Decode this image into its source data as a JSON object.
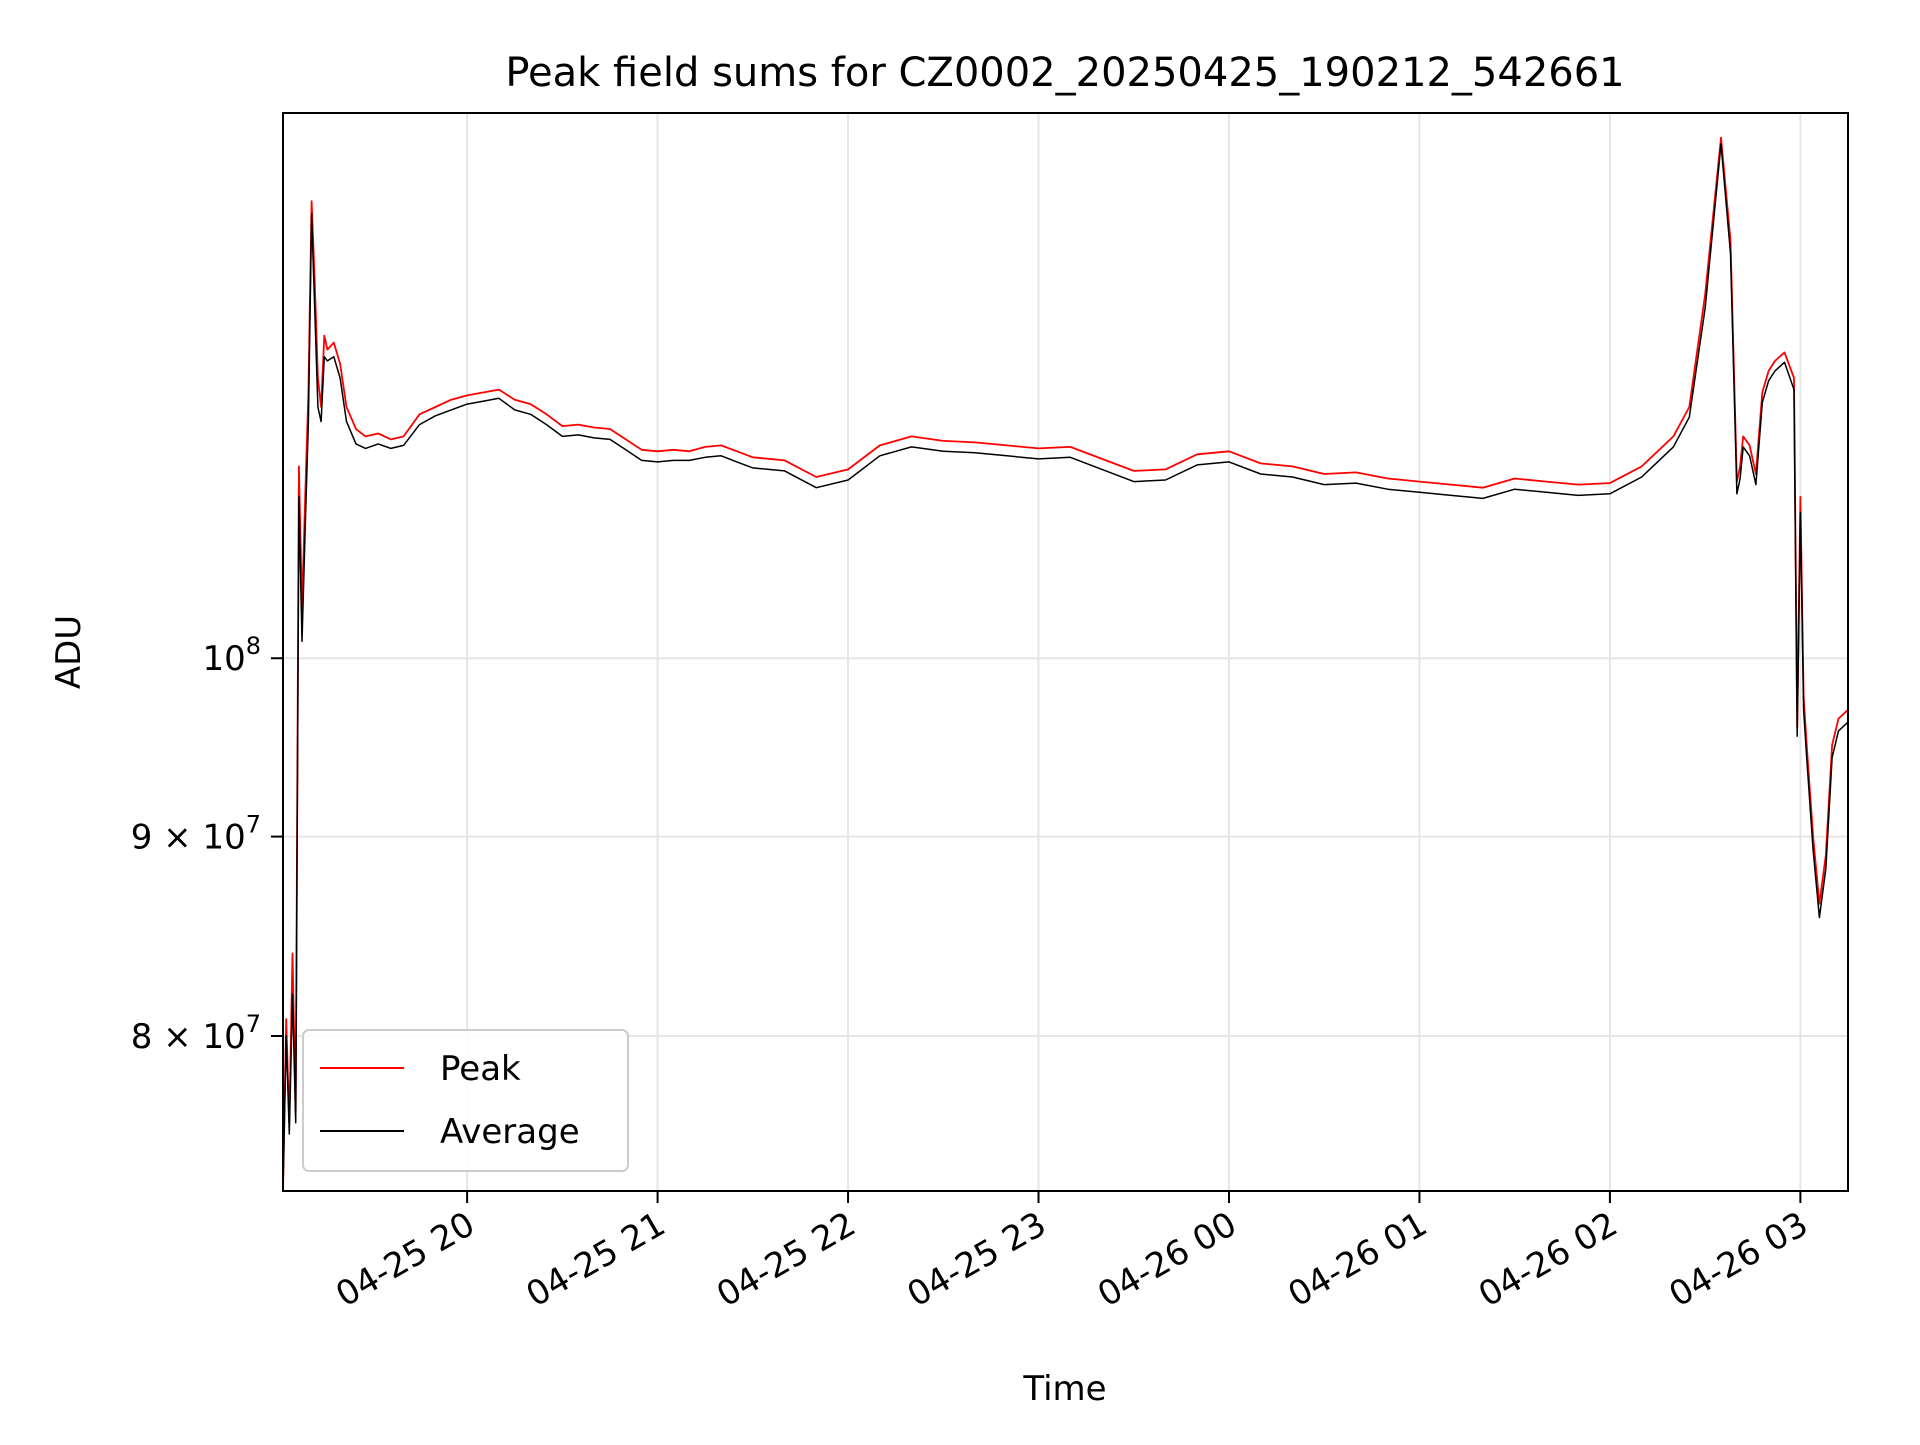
{
  "chart_data": {
    "type": "line",
    "title": "Peak field sums for CZ0002_20250425_190212_542661",
    "xlabel": "Time",
    "ylabel": "ADU",
    "y_scale": "log",
    "grid": true,
    "legend_position": "lower-left",
    "xlim": [
      "2025-04-25 19:02",
      "2025-04-26 03:15"
    ],
    "ylim": [
      73000000,
      138000000
    ],
    "x_ticks": [
      {
        "t": "2025-04-25 20:00",
        "label": "04-25 20"
      },
      {
        "t": "2025-04-25 21:00",
        "label": "04-25 21"
      },
      {
        "t": "2025-04-25 22:00",
        "label": "04-25 22"
      },
      {
        "t": "2025-04-25 23:00",
        "label": "04-25 23"
      },
      {
        "t": "2025-04-26 00:00",
        "label": "04-26 00"
      },
      {
        "t": "2025-04-26 01:00",
        "label": "04-26 01"
      },
      {
        "t": "2025-04-26 02:00",
        "label": "04-26 02"
      },
      {
        "t": "2025-04-26 03:00",
        "label": "04-26 03"
      }
    ],
    "y_ticks": [
      {
        "value": 80000000,
        "mantissa": "8",
        "exponent": "7"
      },
      {
        "value": 90000000,
        "mantissa": "9",
        "exponent": "7"
      },
      {
        "value": 100000000,
        "mantissa": "",
        "exponent": "8"
      }
    ],
    "series": [
      {
        "name": "Peak",
        "color": "#ff0000",
        "x": [
          "2025-04-25 19:02",
          "2025-04-25 19:03",
          "2025-04-25 19:04",
          "2025-04-25 19:05",
          "2025-04-25 19:06",
          "2025-04-25 19:07",
          "2025-04-25 19:08",
          "2025-04-25 19:09",
          "2025-04-25 19:10",
          "2025-04-25 19:11",
          "2025-04-25 19:12",
          "2025-04-25 19:13",
          "2025-04-25 19:14",
          "2025-04-25 19:15",
          "2025-04-25 19:16",
          "2025-04-25 19:18",
          "2025-04-25 19:20",
          "2025-04-25 19:22",
          "2025-04-25 19:25",
          "2025-04-25 19:28",
          "2025-04-25 19:32",
          "2025-04-25 19:36",
          "2025-04-25 19:40",
          "2025-04-25 19:45",
          "2025-04-25 19:50",
          "2025-04-25 19:55",
          "2025-04-25 20:00",
          "2025-04-25 20:05",
          "2025-04-25 20:10",
          "2025-04-25 20:15",
          "2025-04-25 20:20",
          "2025-04-25 20:25",
          "2025-04-25 20:30",
          "2025-04-25 20:35",
          "2025-04-25 20:40",
          "2025-04-25 20:45",
          "2025-04-25 20:50",
          "2025-04-25 20:55",
          "2025-04-25 21:00",
          "2025-04-25 21:05",
          "2025-04-25 21:10",
          "2025-04-25 21:15",
          "2025-04-25 21:20",
          "2025-04-25 21:25",
          "2025-04-25 21:30",
          "2025-04-25 21:40",
          "2025-04-25 21:50",
          "2025-04-25 22:00",
          "2025-04-25 22:10",
          "2025-04-25 22:20",
          "2025-04-25 22:30",
          "2025-04-25 22:40",
          "2025-04-25 22:50",
          "2025-04-25 23:00",
          "2025-04-25 23:10",
          "2025-04-25 23:20",
          "2025-04-25 23:30",
          "2025-04-25 23:40",
          "2025-04-25 23:50",
          "2025-04-26 00:00",
          "2025-04-26 00:10",
          "2025-04-26 00:20",
          "2025-04-26 00:30",
          "2025-04-26 00:40",
          "2025-04-26 00:50",
          "2025-04-26 01:00",
          "2025-04-26 01:10",
          "2025-04-26 01:20",
          "2025-04-26 01:30",
          "2025-04-26 01:40",
          "2025-04-26 01:50",
          "2025-04-26 02:00",
          "2025-04-26 02:10",
          "2025-04-26 02:20",
          "2025-04-26 02:25",
          "2025-04-26 02:30",
          "2025-04-26 02:35",
          "2025-04-26 02:38",
          "2025-04-26 02:40",
          "2025-04-26 02:41",
          "2025-04-26 02:42",
          "2025-04-26 02:44",
          "2025-04-26 02:46",
          "2025-04-26 02:48",
          "2025-04-26 02:50",
          "2025-04-26 02:52",
          "2025-04-26 02:55",
          "2025-04-26 02:58",
          "2025-04-26 02:59",
          "2025-04-26 03:00",
          "2025-04-26 03:01",
          "2025-04-26 03:02",
          "2025-04-26 03:04",
          "2025-04-26 03:06",
          "2025-04-26 03:08",
          "2025-04-26 03:10",
          "2025-04-26 03:12",
          "2025-04-26 03:15"
        ],
        "values": [
          73000000,
          80800000,
          76000000,
          84000000,
          76500000,
          112000000,
          103000000,
          110000000,
          117000000,
          131000000,
          125000000,
          118000000,
          116000000,
          121000000,
          120000000,
          120500000,
          119000000,
          116000000,
          114500000,
          114000000,
          114200000,
          113800000,
          114000000,
          115500000,
          116000000,
          116500000,
          116800000,
          117000000,
          117200000,
          116500000,
          116200000,
          115500000,
          114700000,
          114800000,
          114600000,
          114500000,
          113800000,
          113100000,
          113000000,
          113100000,
          113000000,
          113300000,
          113400000,
          113000000,
          112600000,
          112400000,
          111300000,
          111800000,
          113400000,
          114000000,
          113700000,
          113600000,
          113400000,
          113200000,
          113300000,
          112500000,
          111700000,
          111800000,
          112800000,
          113000000,
          112200000,
          112000000,
          111500000,
          111600000,
          111200000,
          111000000,
          110800000,
          110600000,
          111200000,
          111000000,
          110800000,
          110900000,
          112000000,
          114000000,
          116000000,
          124000000,
          136000000,
          128000000,
          111000000,
          112000000,
          114000000,
          113400000,
          111500000,
          117000000,
          118500000,
          119200000,
          119800000,
          118000000,
          96000000,
          110000000,
          97800000,
          95000000,
          90000000,
          86500000,
          89000000,
          95000000,
          96500000,
          97000000
        ]
      },
      {
        "name": "Average",
        "color": "#000000",
        "x": [
          "2025-04-25 19:02",
          "2025-04-25 19:03",
          "2025-04-25 19:04",
          "2025-04-25 19:05",
          "2025-04-25 19:06",
          "2025-04-25 19:07",
          "2025-04-25 19:08",
          "2025-04-25 19:09",
          "2025-04-25 19:10",
          "2025-04-25 19:11",
          "2025-04-25 19:12",
          "2025-04-25 19:13",
          "2025-04-25 19:14",
          "2025-04-25 19:15",
          "2025-04-25 19:16",
          "2025-04-25 19:18",
          "2025-04-25 19:20",
          "2025-04-25 19:22",
          "2025-04-25 19:25",
          "2025-04-25 19:28",
          "2025-04-25 19:32",
          "2025-04-25 19:36",
          "2025-04-25 19:40",
          "2025-04-25 19:45",
          "2025-04-25 19:50",
          "2025-04-25 19:55",
          "2025-04-25 20:00",
          "2025-04-25 20:05",
          "2025-04-25 20:10",
          "2025-04-25 20:15",
          "2025-04-25 20:20",
          "2025-04-25 20:25",
          "2025-04-25 20:30",
          "2025-04-25 20:35",
          "2025-04-25 20:40",
          "2025-04-25 20:45",
          "2025-04-25 20:50",
          "2025-04-25 20:55",
          "2025-04-25 21:00",
          "2025-04-25 21:05",
          "2025-04-25 21:10",
          "2025-04-25 21:15",
          "2025-04-25 21:20",
          "2025-04-25 21:25",
          "2025-04-25 21:30",
          "2025-04-25 21:40",
          "2025-04-25 21:50",
          "2025-04-25 22:00",
          "2025-04-25 22:10",
          "2025-04-25 22:20",
          "2025-04-25 22:30",
          "2025-04-25 22:40",
          "2025-04-25 22:50",
          "2025-04-25 23:00",
          "2025-04-25 23:10",
          "2025-04-25 23:20",
          "2025-04-25 23:30",
          "2025-04-25 23:40",
          "2025-04-25 23:50",
          "2025-04-26 00:00",
          "2025-04-26 00:10",
          "2025-04-26 00:20",
          "2025-04-26 00:30",
          "2025-04-26 00:40",
          "2025-04-26 00:50",
          "2025-04-26 01:00",
          "2025-04-26 01:10",
          "2025-04-26 01:20",
          "2025-04-26 01:30",
          "2025-04-26 01:40",
          "2025-04-26 01:50",
          "2025-04-26 02:00",
          "2025-04-26 02:10",
          "2025-04-26 02:20",
          "2025-04-26 02:25",
          "2025-04-26 02:30",
          "2025-04-26 02:35",
          "2025-04-26 02:38",
          "2025-04-26 02:40",
          "2025-04-26 02:41",
          "2025-04-26 02:42",
          "2025-04-26 02:44",
          "2025-04-26 02:46",
          "2025-04-26 02:48",
          "2025-04-26 02:50",
          "2025-04-26 02:52",
          "2025-04-26 02:55",
          "2025-04-26 02:58",
          "2025-04-26 02:59",
          "2025-04-26 03:00",
          "2025-04-26 03:01",
          "2025-04-26 03:02",
          "2025-04-26 03:04",
          "2025-04-26 03:06",
          "2025-04-26 03:08",
          "2025-04-26 03:10",
          "2025-04-26 03:12",
          "2025-04-26 03:15"
        ],
        "values": [
          73000000,
          80000000,
          75500000,
          82000000,
          76000000,
          110000000,
          101000000,
          108000000,
          115000000,
          130000000,
          123000000,
          116000000,
          115000000,
          119500000,
          119200000,
          119500000,
          118000000,
          115000000,
          113500000,
          113200000,
          113500000,
          113200000,
          113400000,
          114800000,
          115400000,
          115800000,
          116200000,
          116400000,
          116600000,
          115800000,
          115500000,
          114800000,
          114000000,
          114100000,
          113900000,
          113800000,
          113100000,
          112400000,
          112300000,
          112400000,
          112400000,
          112600000,
          112700000,
          112300000,
          111900000,
          111700000,
          110600000,
          111100000,
          112700000,
          113300000,
          113000000,
          112900000,
          112700000,
          112500000,
          112600000,
          111800000,
          111000000,
          111100000,
          112100000,
          112300000,
          111500000,
          111300000,
          110800000,
          110900000,
          110500000,
          110300000,
          110100000,
          109900000,
          110500000,
          110300000,
          110100000,
          110200000,
          111300000,
          113300000,
          115300000,
          123000000,
          135500000,
          127000000,
          110200000,
          111200000,
          113300000,
          112700000,
          110800000,
          116300000,
          117800000,
          118500000,
          119100000,
          117200000,
          95500000,
          109000000,
          97000000,
          94300000,
          89300000,
          85800000,
          88300000,
          94300000,
          95800000,
          96300000
        ]
      }
    ]
  }
}
